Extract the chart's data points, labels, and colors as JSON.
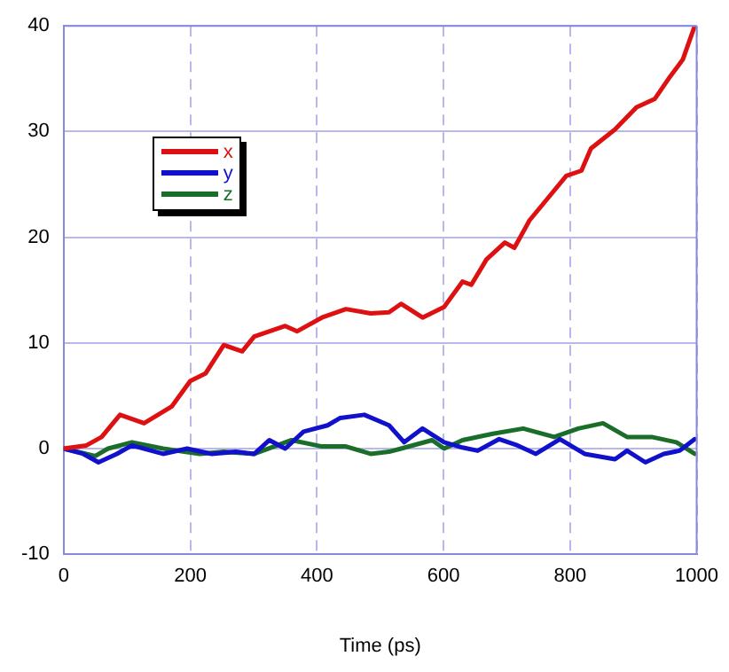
{
  "chart_data": {
    "type": "line",
    "xlabel": "Time (ps)",
    "xlim": [
      0,
      1000
    ],
    "xticks": [
      0,
      200,
      400,
      600,
      800,
      1000
    ],
    "ylim": [
      -10,
      40
    ],
    "yticks": [
      -10,
      0,
      10,
      20,
      30,
      40
    ],
    "grid": true,
    "legend": "top left",
    "marker": "none",
    "line_style": "solid",
    "series": [
      {
        "name": "x",
        "color": "#dd1111",
        "x": [
          0,
          36,
          60,
          89,
          127,
          171,
          200,
          224,
          253,
          282,
          301,
          350,
          369,
          408,
          446,
          485,
          514,
          533,
          567,
          601,
          630,
          644,
          668,
          697,
          712,
          736,
          765,
          794,
          818,
          833,
          871,
          905,
          934,
          958,
          978,
          997
        ],
        "values": [
          0,
          0.3,
          1.1,
          3.2,
          2.4,
          4.0,
          6.4,
          7.1,
          9.8,
          9.2,
          10.6,
          11.6,
          11.1,
          12.4,
          13.2,
          12.8,
          12.9,
          13.7,
          12.4,
          13.4,
          15.8,
          15.5,
          17.9,
          19.5,
          19.0,
          21.6,
          23.7,
          25.8,
          26.3,
          28.4,
          30.2,
          32.3,
          33.1,
          35.2,
          36.8,
          40
        ]
      },
      {
        "name": "y",
        "color": "#1111cc",
        "x": [
          0,
          31,
          55,
          84,
          108,
          157,
          195,
          234,
          272,
          301,
          325,
          350,
          379,
          417,
          437,
          475,
          514,
          538,
          567,
          601,
          630,
          654,
          688,
          717,
          746,
          784,
          823,
          871,
          890,
          919,
          948,
          973,
          997
        ],
        "values": [
          0,
          -0.5,
          -1.3,
          -0.5,
          0.3,
          -0.5,
          0,
          -0.5,
          -0.3,
          -0.5,
          0.8,
          0,
          1.6,
          2.2,
          2.9,
          3.2,
          2.2,
          0.6,
          1.9,
          0.6,
          0.1,
          -0.2,
          0.9,
          0.3,
          -0.5,
          0.9,
          -0.5,
          -1.0,
          -0.2,
          -1.3,
          -0.5,
          -0.2,
          0.9
        ]
      },
      {
        "name": "z",
        "color": "#1a6e2a",
        "x": [
          0,
          50,
          70,
          108,
          157,
          215,
          253,
          301,
          360,
          408,
          446,
          485,
          514,
          533,
          582,
          601,
          630,
          678,
          726,
          775,
          813,
          852,
          890,
          929,
          968,
          997
        ],
        "values": [
          0,
          -0.7,
          0,
          0.6,
          0,
          -0.5,
          -0.3,
          -0.5,
          0.8,
          0.2,
          0.2,
          -0.5,
          -0.3,
          0,
          0.8,
          0,
          0.8,
          1.4,
          1.9,
          1.1,
          1.9,
          2.4,
          1.1,
          1.1,
          0.6,
          -0.5
        ]
      }
    ]
  }
}
